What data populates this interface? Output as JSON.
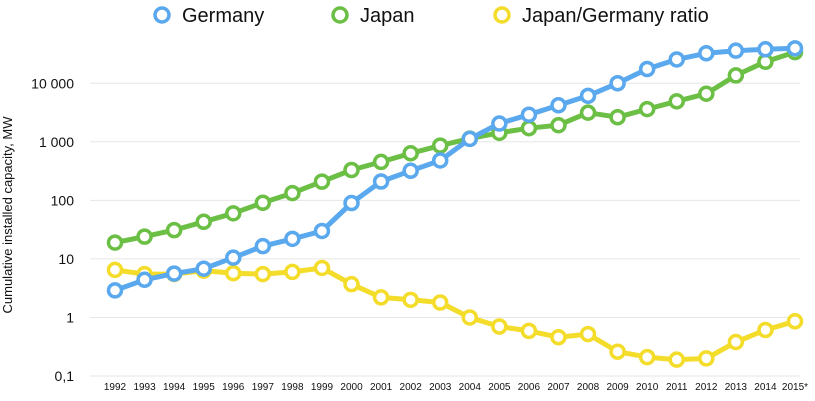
{
  "chart_data": {
    "type": "line",
    "ylabel": "Cumulative installed capacity, MW",
    "y_scale": "log",
    "ylim": [
      0.1,
      40000
    ],
    "y_ticks": [
      0.1,
      1,
      10,
      100,
      1000,
      10000
    ],
    "y_tick_labels": [
      "0,1",
      "1",
      "10",
      "100",
      "1 000",
      "10 000"
    ],
    "grid": "horizontal",
    "legend_position": "top",
    "categories": [
      "1992",
      "1993",
      "1994",
      "1995",
      "1996",
      "1997",
      "1998",
      "1999",
      "2000",
      "2001",
      "2002",
      "2003",
      "2004",
      "2005",
      "2006",
      "2007",
      "2008",
      "2009",
      "2010",
      "2011",
      "2012",
      "2013",
      "2014",
      "2015*"
    ],
    "series": [
      {
        "name": "Germany",
        "color": "#5aa8ee",
        "values": [
          2.9,
          4.4,
          5.6,
          6.8,
          10.5,
          16.5,
          22,
          30,
          90,
          210,
          320,
          480,
          1120,
          2050,
          2900,
          4200,
          6100,
          10000,
          17500,
          25500,
          32500,
          36000,
          38000,
          39500
        ]
      },
      {
        "name": "Japan",
        "color": "#6cbf45",
        "values": [
          19,
          24,
          31,
          43,
          60,
          91,
          133,
          209,
          330,
          453,
          637,
          860,
          1132,
          1422,
          1708,
          1919,
          3144,
          2627,
          3618,
          4914,
          6632,
          13600,
          23300,
          34000
        ]
      },
      {
        "name": "Japan/Germany ratio",
        "color": "#f4dc2a",
        "values": [
          6.5,
          5.5,
          5.5,
          6.3,
          5.7,
          5.5,
          6.0,
          7.0,
          3.7,
          2.2,
          2.0,
          1.8,
          1.0,
          0.7,
          0.59,
          0.46,
          0.52,
          0.26,
          0.21,
          0.19,
          0.2,
          0.38,
          0.61,
          0.86
        ]
      }
    ]
  }
}
